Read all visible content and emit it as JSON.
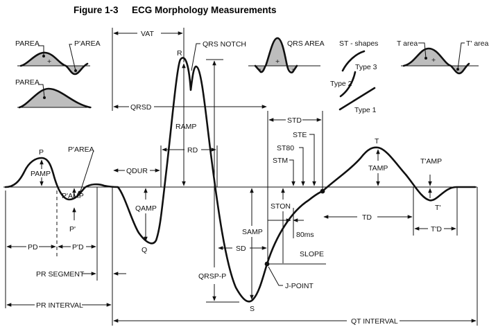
{
  "header": {
    "figure_number": "Figure 1-3",
    "title": "ECG Morphology Measurements"
  },
  "insets": {
    "p_area_top": {
      "label": "PAREA",
      "label2": "P'AREA",
      "plus": "+",
      "minus": "-"
    },
    "p_area_bottom": {
      "label": "PAREA"
    },
    "qrs_area": {
      "label": "QRS AREA",
      "plus": "+",
      "minus": "-"
    },
    "st_shapes": {
      "title": "ST - shapes",
      "type3": "Type 3",
      "type2": "Type 2",
      "type1": "Type 1"
    },
    "t_area": {
      "label": "T area",
      "label2": "T' area",
      "plus": "+",
      "minus": "-"
    }
  },
  "labels": {
    "vat": "VAT",
    "qrs_notch": "QRS NOTCH",
    "r": "R",
    "qrs_d": "QRSD",
    "r_amp": "RAMP",
    "r_d": "RD",
    "q_dur": "QDUR",
    "q_amp": "QAMP",
    "q": "Q",
    "p": "P",
    "p_amp": "PAMP",
    "p_prime_area": "P'AREA",
    "p_prime_amp": "P'AMP",
    "p_prime": "P'",
    "p_d": "PD",
    "p_prime_d": "P'D",
    "pr_segment": "PR SEGMENT",
    "pr_interval": "PR INTERVAL",
    "qrs_pp": "QRSP-P",
    "s": "S",
    "s_amp": "SAMP",
    "s_d": "SD",
    "st_d": "STD",
    "st_e": "STE",
    "st80": "ST80",
    "st_m": "STM",
    "st_on": "STON",
    "ms80": "80ms",
    "slope": "SLOPE",
    "j_point": "J-POINT",
    "t": "T",
    "t_amp": "TAMP",
    "t_prime_amp": "T'AMP",
    "t_prime": "T'",
    "t_d": "TD",
    "t_prime_d": "T'D",
    "qt_interval": "QT INTERVAL"
  }
}
